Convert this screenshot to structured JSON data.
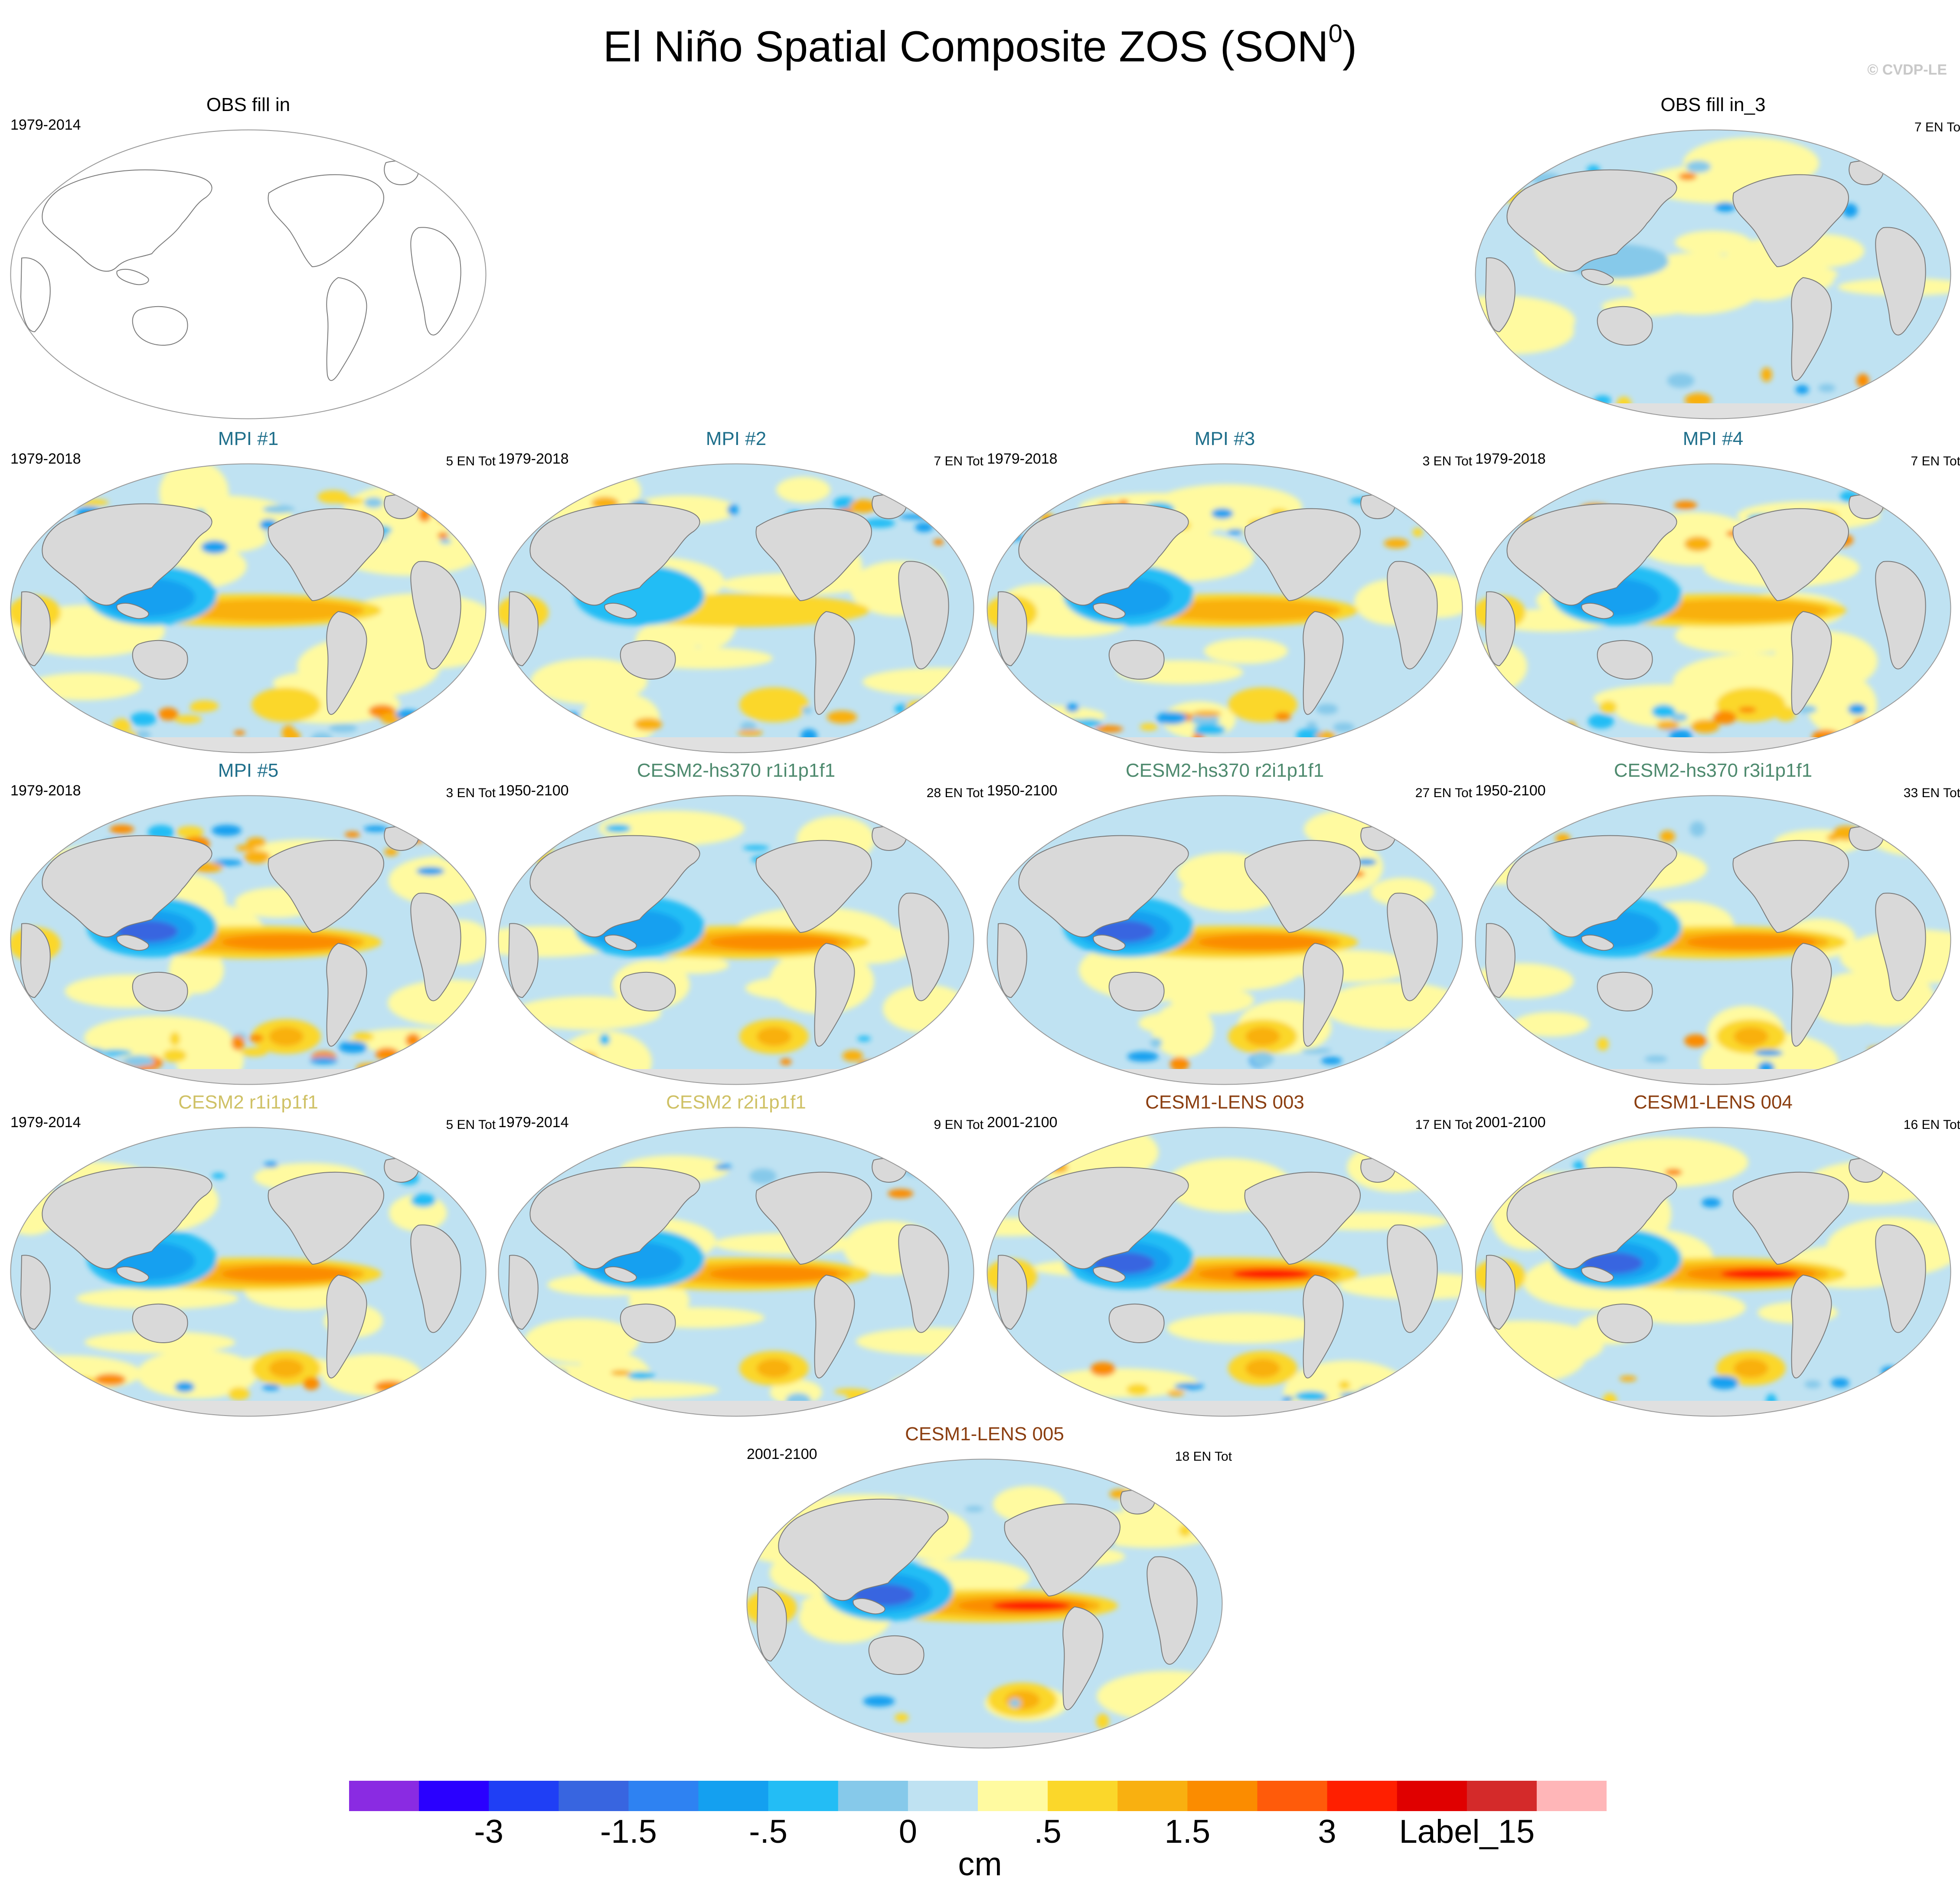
{
  "title": "El Niño Spatial Composite ZOS (SON",
  "title_sup": "0",
  "title_end": ")",
  "credit": "© CVDP-LE",
  "units": "cm",
  "colorbar": {
    "colors": [
      "#8a2be2",
      "#2a00ff",
      "#1f3ff5",
      "#3865e0",
      "#2e82f2",
      "#14a0f0",
      "#23bdf5",
      "#86c9ea",
      "#bfe2f2",
      "#fffaa0",
      "#fbd72a",
      "#f9b010",
      "#fb8c00",
      "#ff5b0a",
      "#ff1f00",
      "#e00000",
      "#d42a2a",
      "#ffb6b8"
    ],
    "labels": [
      "-3",
      "-1.5",
      "-.5",
      "0",
      ".5",
      "1.5",
      "3",
      "Label_15"
    ]
  },
  "panels": [
    {
      "title": "OBS fill in",
      "color": "#000000",
      "years": "1979-2014",
      "count": "",
      "style": "outline",
      "intensity": 0,
      "noise": 0
    },
    {
      "title": "OBS fill in_3",
      "color": "#000000",
      "years": "",
      "count": "7 EN To",
      "style": "obs3",
      "intensity": 0.15,
      "noise": 0.3
    },
    {
      "title": "MPI #1",
      "color": "#1f6f8b",
      "years": "1979-2018",
      "count": "5 EN Tot",
      "style": "mpi",
      "intensity": 0.6,
      "noise": 0.7
    },
    {
      "title": "MPI #2",
      "color": "#1f6f8b",
      "years": "1979-2018",
      "count": "7 EN Tot",
      "style": "mpi",
      "intensity": 0.35,
      "noise": 0.5
    },
    {
      "title": "MPI #3",
      "color": "#1f6f8b",
      "years": "1979-2018",
      "count": "3 EN Tot",
      "style": "mpi",
      "intensity": 0.5,
      "noise": 0.8
    },
    {
      "title": "MPI #4",
      "color": "#1f6f8b",
      "years": "1979-2018",
      "count": "7 EN Tot",
      "style": "mpi",
      "intensity": 0.45,
      "noise": 0.6
    },
    {
      "title": "MPI #5",
      "color": "#1f6f8b",
      "years": "1979-2018",
      "count": "3 EN Tot",
      "style": "mpi",
      "intensity": 0.75,
      "noise": 0.8
    },
    {
      "title": "CESM2-hs370 r1i1p1f1",
      "color": "#4e8a6e",
      "years": "1950-2100",
      "count": "28 EN Tot",
      "style": "cesm",
      "intensity": 0.7,
      "noise": 0.25
    },
    {
      "title": "CESM2-hs370 r2i1p1f1",
      "color": "#4e8a6e",
      "years": "1950-2100",
      "count": "27 EN Tot",
      "style": "cesm",
      "intensity": 0.75,
      "noise": 0.25
    },
    {
      "title": "CESM2-hs370 r3i1p1f1",
      "color": "#4e8a6e",
      "years": "1950-2100",
      "count": "33 EN Tot",
      "style": "cesm",
      "intensity": 0.7,
      "noise": 0.25
    },
    {
      "title": "CESM2 r1i1p1f1",
      "color": "#cfc165",
      "years": "1979-2014",
      "count": "5 EN Tot",
      "style": "cesm",
      "intensity": 0.7,
      "noise": 0.25
    },
    {
      "title": "CESM2 r2i1p1f1",
      "color": "#cfc165",
      "years": "1979-2014",
      "count": "9 EN Tot",
      "style": "cesm",
      "intensity": 0.65,
      "noise": 0.25
    },
    {
      "title": "CESM1-LENS 003",
      "color": "#8b3e10",
      "years": "2001-2100",
      "count": "17 EN Tot",
      "style": "cesm",
      "intensity": 0.9,
      "noise": 0.2
    },
    {
      "title": "CESM1-LENS 004",
      "color": "#8b3e10",
      "years": "2001-2100",
      "count": "16 EN Tot",
      "style": "cesm",
      "intensity": 0.85,
      "noise": 0.2
    },
    {
      "title": "CESM1-LENS 005",
      "color": "#8b3e10",
      "years": "2001-2100",
      "count": "18 EN Tot",
      "style": "cesm",
      "intensity": 0.9,
      "noise": 0.2
    }
  ]
}
